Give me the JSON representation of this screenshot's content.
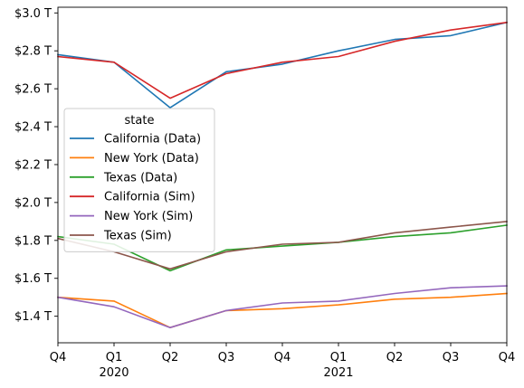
{
  "chart_data": {
    "type": "line",
    "title": "",
    "xlabel": "",
    "ylabel": "",
    "x": [
      "Q4",
      "Q1",
      "Q2",
      "Q3",
      "Q4",
      "Q1",
      "Q2",
      "Q3",
      "Q4"
    ],
    "x_year_labels": [
      {
        "index": 1,
        "label": "2020"
      },
      {
        "index": 5,
        "label": "2021"
      }
    ],
    "yticks": [
      1.4,
      1.6,
      1.8,
      2.0,
      2.2,
      2.4,
      2.6,
      2.8,
      3.0
    ],
    "ytick_labels": [
      "$1.4 T",
      "$1.6 T",
      "$1.8 T",
      "$2.0 T",
      "$2.2 T",
      "$2.4 T",
      "$2.6 T",
      "$2.8 T",
      "$3.0 T"
    ],
    "ylim": [
      1.26,
      3.03
    ],
    "grid": false,
    "legend": {
      "title": "state",
      "placement": "center-left"
    },
    "series": [
      {
        "name": "California (Data)",
        "color": "#1f77b4",
        "values": [
          2.78,
          2.74,
          2.5,
          2.69,
          2.73,
          2.8,
          2.86,
          2.88,
          2.95
        ]
      },
      {
        "name": "New York (Data)",
        "color": "#ff7f0e",
        "values": [
          1.5,
          1.48,
          1.34,
          1.43,
          1.44,
          1.46,
          1.49,
          1.5,
          1.52
        ]
      },
      {
        "name": "Texas (Data)",
        "color": "#2ca02c",
        "values": [
          1.82,
          1.78,
          1.64,
          1.75,
          1.77,
          1.79,
          1.82,
          1.84,
          1.88
        ]
      },
      {
        "name": "California (Sim)",
        "color": "#d62728",
        "values": [
          2.77,
          2.74,
          2.55,
          2.68,
          2.74,
          2.77,
          2.85,
          2.91,
          2.95
        ]
      },
      {
        "name": "New York (Sim)",
        "color": "#9467bd",
        "values": [
          1.5,
          1.45,
          1.34,
          1.43,
          1.47,
          1.48,
          1.52,
          1.55,
          1.56
        ]
      },
      {
        "name": "Texas (Sim)",
        "color": "#8c564b",
        "values": [
          1.81,
          1.74,
          1.65,
          1.74,
          1.78,
          1.79,
          1.84,
          1.87,
          1.9
        ]
      }
    ]
  }
}
